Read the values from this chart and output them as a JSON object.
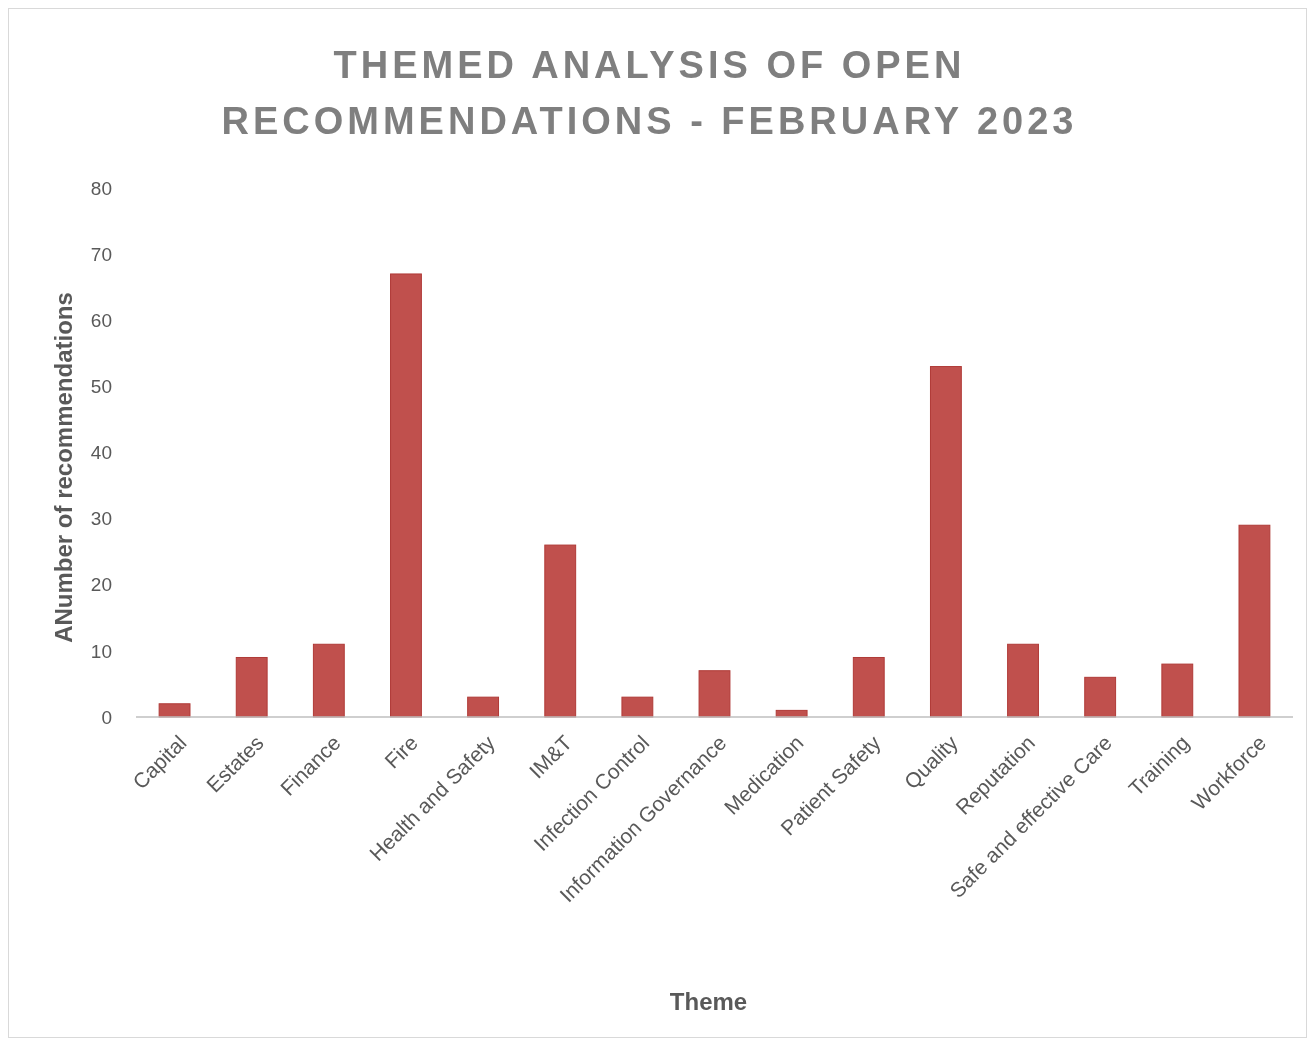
{
  "chart_data": {
    "type": "bar",
    "title": "THEMED ANALYSIS OF OPEN RECOMMENDATIONS - FEBRUARY 2023",
    "xlabel": "Theme",
    "ylabel": "ANumber of recommendations",
    "categories": [
      "Capital",
      "Estates",
      "Finance",
      "Fire",
      "Health and Safety",
      "IM&T",
      "Infection Control",
      "Information Governance",
      "Medication",
      "Patient Safety",
      "Quality",
      "Reputation",
      "Safe and effective Care",
      "Training",
      "Workforce"
    ],
    "values": [
      2,
      9,
      11,
      67,
      3,
      26,
      3,
      7,
      1,
      9,
      53,
      11,
      6,
      8,
      29
    ],
    "color": "#c0504d",
    "ylim": [
      0,
      80
    ],
    "yticks": [
      0,
      10,
      20,
      30,
      40,
      50,
      60,
      70,
      80
    ],
    "grid": false
  }
}
